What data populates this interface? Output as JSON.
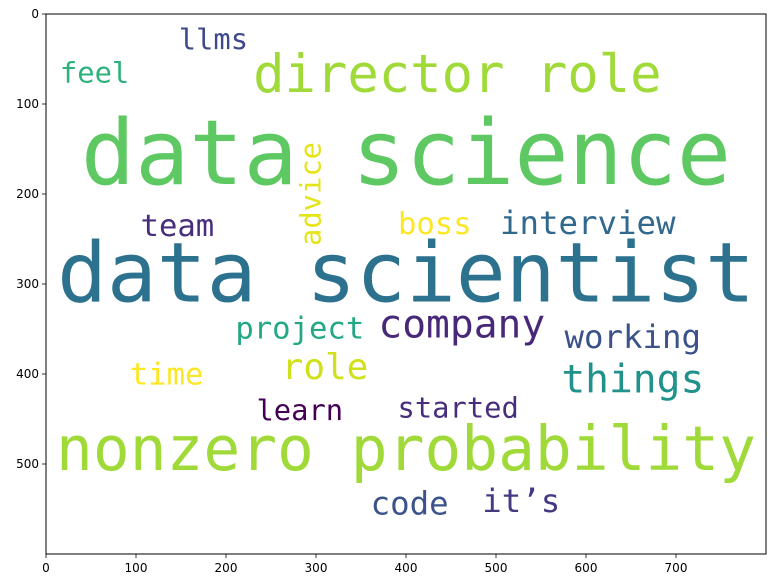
{
  "chart_data": {
    "type": "wordcloud",
    "title": "",
    "xlabel": "",
    "ylabel": "",
    "xlim": [
      0,
      800
    ],
    "ylim": [
      600,
      0
    ],
    "xticks": [
      0,
      100,
      200,
      300,
      400,
      500,
      600,
      700
    ],
    "yticks": [
      0,
      100,
      200,
      300,
      400,
      500
    ],
    "grid": false,
    "words": [
      {
        "text": "data science",
        "x": 400,
        "y": 155,
        "size": 100,
        "color": "#5ec962",
        "rotation": 0
      },
      {
        "text": "data scientist",
        "x": 400,
        "y": 288,
        "size": 92,
        "color": "#2c728e",
        "rotation": 0
      },
      {
        "text": "nonzero probability",
        "x": 400,
        "y": 484,
        "size": 68,
        "color": "#a0da39",
        "rotation": 0
      },
      {
        "text": "director role",
        "x": 457,
        "y": 68,
        "size": 58,
        "color": "#a0da39",
        "rotation": 0
      },
      {
        "text": "company",
        "x": 462,
        "y": 345,
        "size": 44,
        "color": "#482878",
        "rotation": 0
      },
      {
        "text": "things",
        "x": 652,
        "y": 406,
        "size": 44,
        "color": "#21918c",
        "rotation": 0
      },
      {
        "text": "interview",
        "x": 602,
        "y": 232,
        "size": 36,
        "color": "#31688e",
        "rotation": 0
      },
      {
        "text": "working",
        "x": 652,
        "y": 359,
        "size": 36,
        "color": "#3b528b",
        "rotation": 0
      },
      {
        "text": "role",
        "x": 310,
        "y": 393,
        "size": 40,
        "color": "#d0e11c",
        "rotation": 0
      },
      {
        "text": "project",
        "x": 282,
        "y": 350,
        "size": 34,
        "color": "#22a884",
        "rotation": 0
      },
      {
        "text": "code",
        "x": 404,
        "y": 544,
        "size": 36,
        "color": "#3b528b",
        "rotation": 0
      },
      {
        "text": "it’s",
        "x": 528,
        "y": 541,
        "size": 36,
        "color": "#443983",
        "rotation": 0
      },
      {
        "text": "boss",
        "x": 432,
        "y": 234,
        "size": 34,
        "color": "#fde725",
        "rotation": 0
      },
      {
        "text": "team",
        "x": 146,
        "y": 236,
        "size": 34,
        "color": "#472d7b",
        "rotation": 0
      },
      {
        "text": "advice",
        "x": 294,
        "y": 200,
        "size": 32,
        "color": "#e5e419",
        "rotation": -90
      },
      {
        "text": "time",
        "x": 134,
        "y": 401,
        "size": 34,
        "color": "#fde725",
        "rotation": 0
      },
      {
        "text": "learn",
        "x": 282,
        "y": 440,
        "size": 32,
        "color": "#440154",
        "rotation": 0
      },
      {
        "text": "started",
        "x": 458,
        "y": 437,
        "size": 32,
        "color": "#472d7b",
        "rotation": 0
      },
      {
        "text": "llms",
        "x": 186,
        "y": 28,
        "size": 32,
        "color": "#3e4989",
        "rotation": 0
      },
      {
        "text": "feel",
        "x": 54,
        "y": 65,
        "size": 32,
        "color": "#2db27d",
        "rotation": 0
      }
    ]
  }
}
